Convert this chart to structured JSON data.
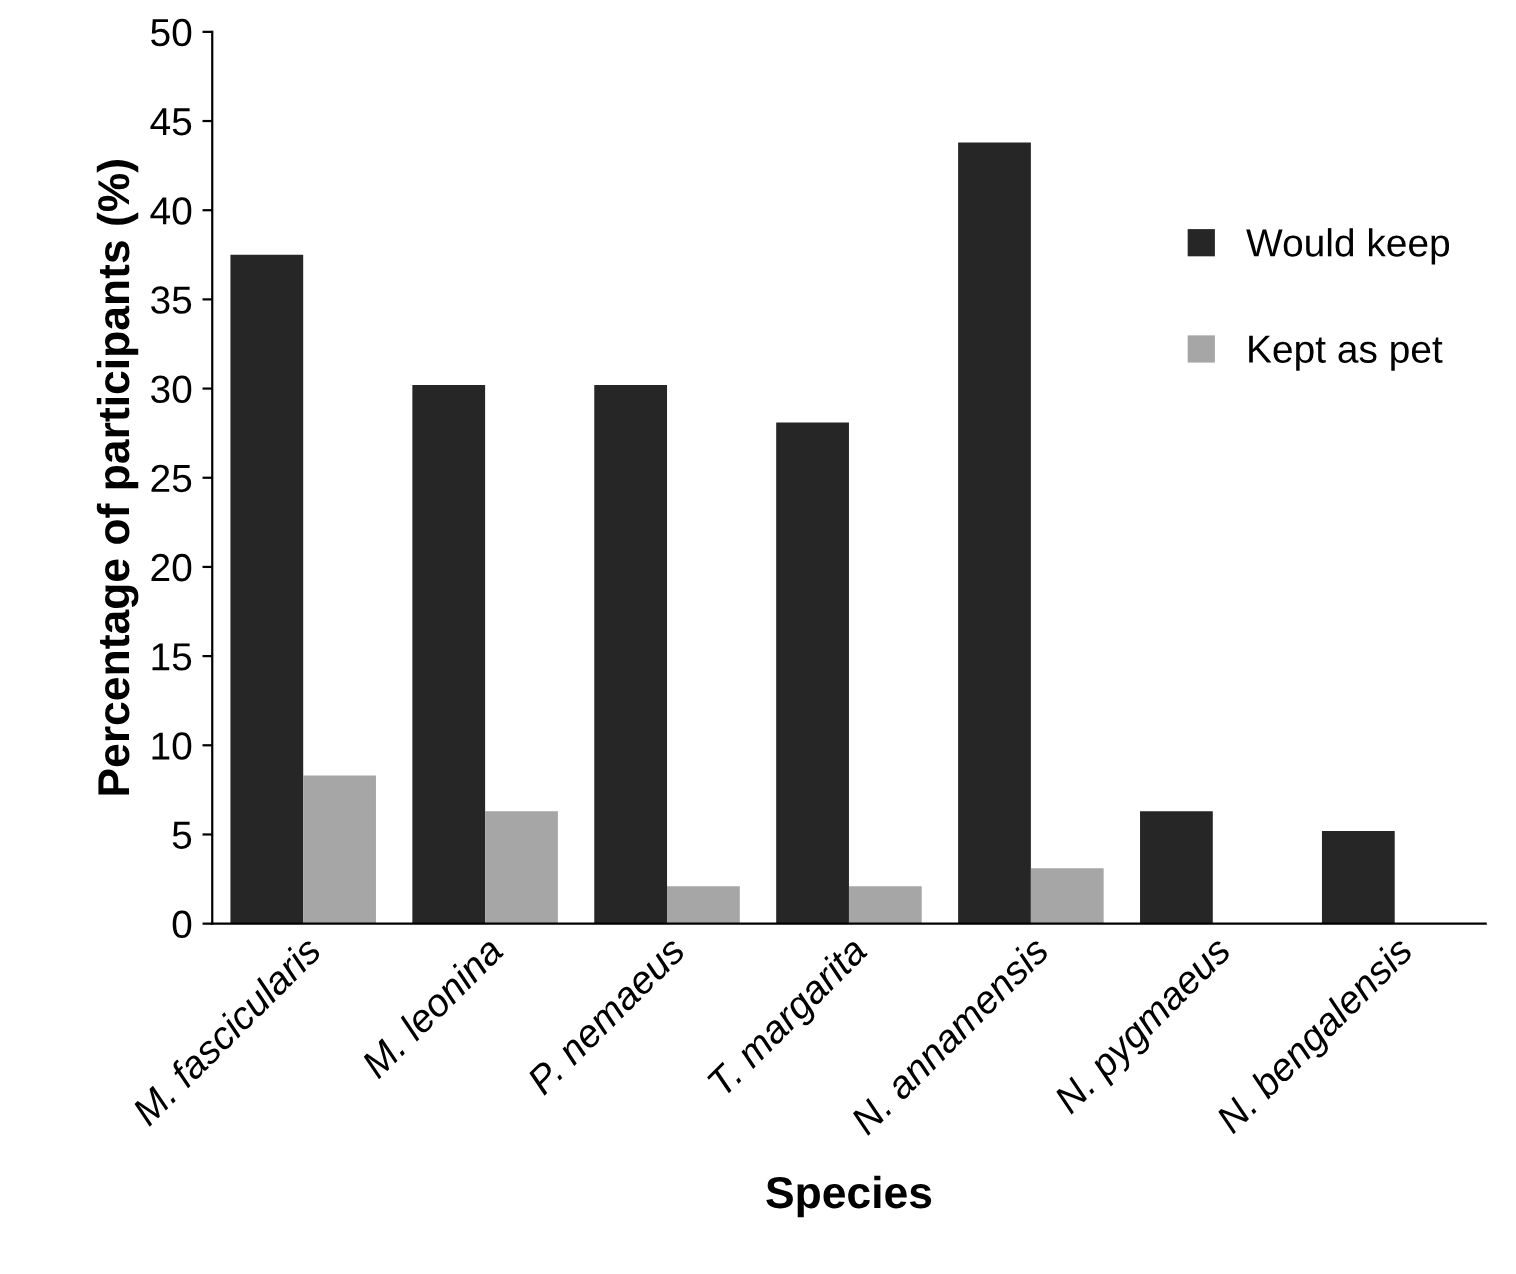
{
  "chart_data": {
    "type": "bar",
    "xlabel": "Species",
    "ylabel": "Percentage of participants (%)",
    "categories": [
      "M. fascicularis",
      "M. leonina",
      "P. nemaeus",
      "T. margarita",
      "N. annamensis",
      "N. pygmaeus",
      "N. bengalensis"
    ],
    "series": [
      {
        "name": "Would keep",
        "color": "#262626",
        "values": [
          37.5,
          30.2,
          30.2,
          28.1,
          43.8,
          6.3,
          5.2
        ]
      },
      {
        "name": "Kept as pet",
        "color": "#a6a6a6",
        "values": [
          8.3,
          6.3,
          2.1,
          2.1,
          3.1,
          0,
          0
        ]
      }
    ],
    "ylim": [
      0,
      50
    ],
    "yticks": [
      0,
      5,
      10,
      15,
      20,
      25,
      30,
      35,
      40,
      45,
      50
    ],
    "grid": false,
    "legend": "right"
  }
}
